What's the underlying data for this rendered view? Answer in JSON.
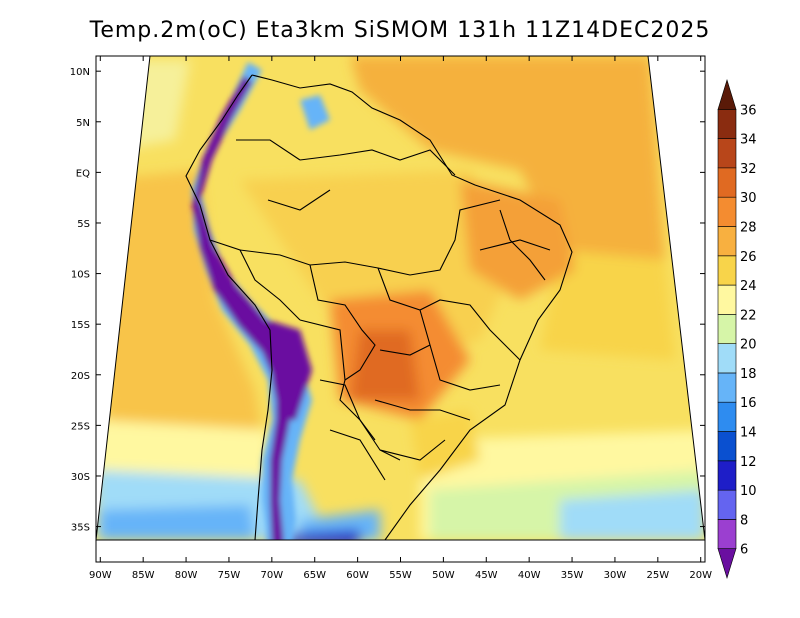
{
  "title": "Temp.2m(oC) Eta3km SiSMOM 131h 11Z14DEC2025",
  "map": {
    "lat_labels": [
      {
        "label": "10N",
        "lat": 10
      },
      {
        "label": "5N",
        "lat": 5
      },
      {
        "label": "EQ",
        "lat": 0
      },
      {
        "label": "5S",
        "lat": -5
      },
      {
        "label": "10S",
        "lat": -10
      },
      {
        "label": "15S",
        "lat": -15
      },
      {
        "label": "20S",
        "lat": -20
      },
      {
        "label": "25S",
        "lat": -25
      },
      {
        "label": "30S",
        "lat": -30
      },
      {
        "label": "35S",
        "lat": -35
      }
    ],
    "lon_labels": [
      {
        "label": "90W",
        "lon": -90
      },
      {
        "label": "85W",
        "lon": -85
      },
      {
        "label": "80W",
        "lon": -80
      },
      {
        "label": "75W",
        "lon": -75
      },
      {
        "label": "70W",
        "lon": -70
      },
      {
        "label": "65W",
        "lon": -65
      },
      {
        "label": "60W",
        "lon": -60
      },
      {
        "label": "55W",
        "lon": -55
      },
      {
        "label": "50W",
        "lon": -50
      },
      {
        "label": "45W",
        "lon": -45
      },
      {
        "label": "40W",
        "lon": -40
      },
      {
        "label": "35W",
        "lon": -35
      },
      {
        "label": "30W",
        "lon": -30
      },
      {
        "label": "25W",
        "lon": -25
      },
      {
        "label": "20W",
        "lon": -20
      }
    ],
    "extent": {
      "lon_min": -90.5,
      "lon_max": -19.5,
      "lat_min": -38.5,
      "lat_max": 11.5
    }
  },
  "colorbar": {
    "levels": [
      6,
      8,
      10,
      12,
      14,
      16,
      18,
      20,
      22,
      24,
      26,
      28,
      30,
      32,
      34,
      36
    ],
    "colors": [
      "#6a0fa0",
      "#9b3fd0",
      "#6464f0",
      "#1e1ec8",
      "#0a50d0",
      "#2e8cf0",
      "#66b4f8",
      "#a0dcf8",
      "#d6f5a8",
      "#fff8a0",
      "#f8d44a",
      "#f8b040",
      "#f48c30",
      "#e06a22",
      "#b8461a",
      "#8a2c10",
      "#5a1a08"
    ]
  }
}
